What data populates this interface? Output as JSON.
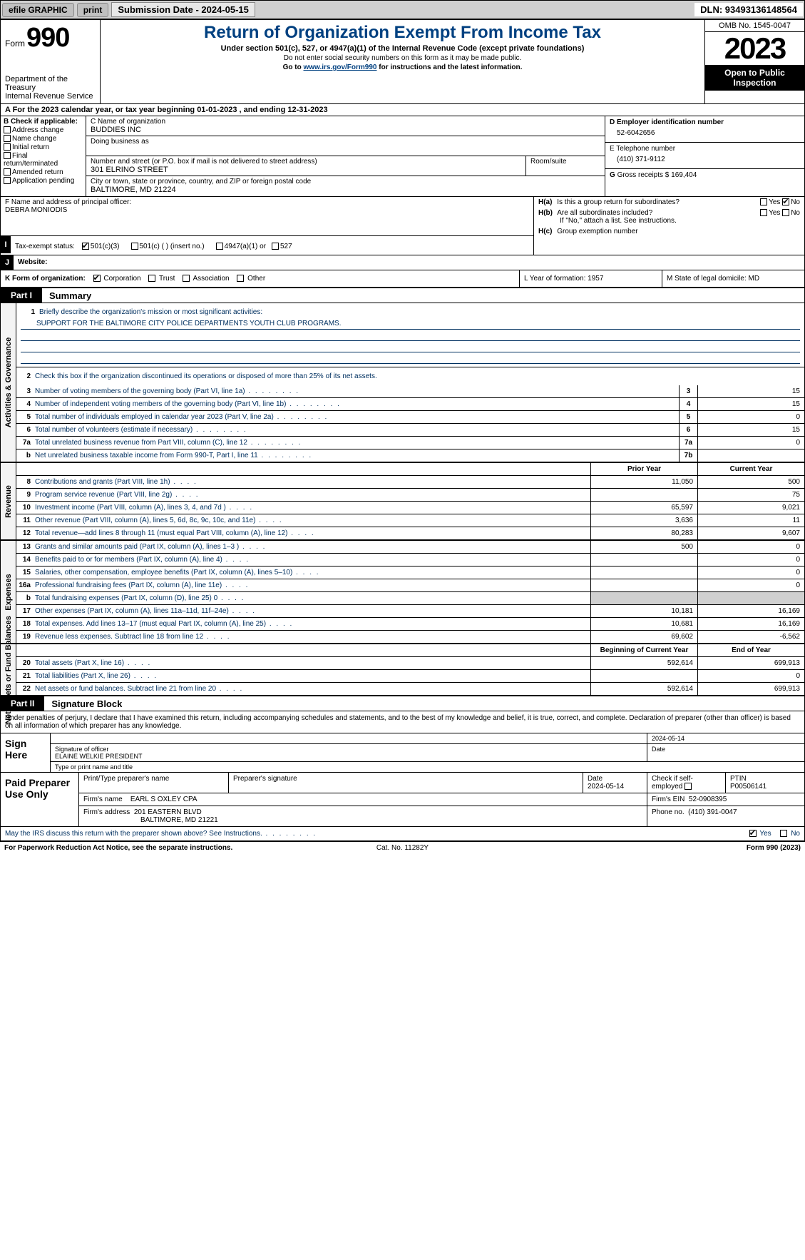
{
  "topbar": {
    "efile": "efile GRAPHIC",
    "print": "print",
    "submission": "Submission Date - 2024-05-15",
    "dln": "DLN: 93493136148564"
  },
  "header": {
    "form_word": "Form",
    "form_num": "990",
    "dept": "Department of the Treasury\nInternal Revenue Service",
    "title": "Return of Organization Exempt From Income Tax",
    "sub": "Under section 501(c), 527, or 4947(a)(1) of the Internal Revenue Code (except private foundations)",
    "note1": "Do not enter social security numbers on this form as it may be made public.",
    "note2_pre": "Go to ",
    "note2_link": "www.irs.gov/Form990",
    "note2_post": " for instructions and the latest information.",
    "omb": "OMB No. 1545-0047",
    "year": "2023",
    "open": "Open to Public Inspection"
  },
  "period": {
    "a": "A For the 2023 calendar year, or tax year beginning 01-01-2023   , and ending 12-31-2023"
  },
  "box_b": {
    "hdr": "B Check if applicable:",
    "items": [
      "Address change",
      "Name change",
      "Initial return",
      "Final return/terminated",
      "Amended return",
      "Application pending"
    ]
  },
  "box_c": {
    "label_name": "C Name of organization",
    "name": "BUDDIES INC",
    "dba_label": "Doing business as",
    "addr_label": "Number and street (or P.O. box if mail is not delivered to street address)",
    "room_label": "Room/suite",
    "addr": "301 ELRINO STREET",
    "city_label": "City or town, state or province, country, and ZIP or foreign postal code",
    "city": "BALTIMORE, MD  21224"
  },
  "box_d": {
    "label": "D Employer identification number",
    "val": "52-6042656"
  },
  "box_e": {
    "label": "E Telephone number",
    "val": "(410) 371-9112"
  },
  "box_g": {
    "label": "G",
    "text": "Gross receipts $ 169,404"
  },
  "box_f": {
    "label": "F  Name and address of principal officer:",
    "val": "DEBRA MONIODIS"
  },
  "box_h": {
    "a_label": "H(a)",
    "a_text": "Is this a group return for subordinates?",
    "a_yes": "Yes",
    "a_no": "No",
    "b_label": "H(b)",
    "b_text": "Are all subordinates included?",
    "b_note": "If \"No,\" attach a list. See instructions.",
    "c_label": "H(c)",
    "c_text": "Group exemption number"
  },
  "box_i": {
    "label": "Tax-exempt status:",
    "o1": "501(c)(3)",
    "o2": "501(c) (  ) (insert no.)",
    "o3": "4947(a)(1) or",
    "o4": "527"
  },
  "box_j": {
    "label": "Website:"
  },
  "box_k": {
    "label": "K Form of organization:",
    "opts": [
      "Corporation",
      "Trust",
      "Association",
      "Other"
    ],
    "l": "L Year of formation: 1957",
    "m": "M State of legal domicile: MD"
  },
  "part1": {
    "tab": "Part I",
    "title": "Summary",
    "vtabs": [
      "Activities & Governance",
      "Revenue",
      "Expenses",
      "Net Assets or Fund Balances"
    ],
    "mission_label": "Briefly describe the organization's mission or most significant activities:",
    "mission": "SUPPORT FOR THE BALTIMORE CITY POLICE DEPARTMENTS YOUTH CLUB PROGRAMS.",
    "line2": "Check this box      if the organization discontinued its operations or disposed of more than 25% of its net assets.",
    "gov_rows": [
      {
        "n": "3",
        "label": "Number of voting members of the governing body (Part VI, line 1a)",
        "id": "3",
        "val": "15"
      },
      {
        "n": "4",
        "label": "Number of independent voting members of the governing body (Part VI, line 1b)",
        "id": "4",
        "val": "15"
      },
      {
        "n": "5",
        "label": "Total number of individuals employed in calendar year 2023 (Part V, line 2a)",
        "id": "5",
        "val": "0"
      },
      {
        "n": "6",
        "label": "Total number of volunteers (estimate if necessary)",
        "id": "6",
        "val": "15"
      },
      {
        "n": "7a",
        "label": "Total unrelated business revenue from Part VIII, column (C), line 12",
        "id": "7a",
        "val": "0"
      },
      {
        "n": "b",
        "label": "Net unrelated business taxable income from Form 990-T, Part I, line 11",
        "id": "7b",
        "val": ""
      }
    ],
    "col_hdrs": {
      "prior": "Prior Year",
      "current": "Current Year"
    },
    "rev_rows": [
      {
        "n": "8",
        "label": "Contributions and grants (Part VIII, line 1h)",
        "p": "11,050",
        "c": "500"
      },
      {
        "n": "9",
        "label": "Program service revenue (Part VIII, line 2g)",
        "p": "",
        "c": "75"
      },
      {
        "n": "10",
        "label": "Investment income (Part VIII, column (A), lines 3, 4, and 7d )",
        "p": "65,597",
        "c": "9,021"
      },
      {
        "n": "11",
        "label": "Other revenue (Part VIII, column (A), lines 5, 6d, 8c, 9c, 10c, and 11e)",
        "p": "3,636",
        "c": "11"
      },
      {
        "n": "12",
        "label": "Total revenue—add lines 8 through 11 (must equal Part VIII, column (A), line 12)",
        "p": "80,283",
        "c": "9,607"
      }
    ],
    "exp_rows": [
      {
        "n": "13",
        "label": "Grants and similar amounts paid (Part IX, column (A), lines 1–3 )",
        "p": "500",
        "c": "0"
      },
      {
        "n": "14",
        "label": "Benefits paid to or for members (Part IX, column (A), line 4)",
        "p": "",
        "c": "0"
      },
      {
        "n": "15",
        "label": "Salaries, other compensation, employee benefits (Part IX, column (A), lines 5–10)",
        "p": "",
        "c": "0"
      },
      {
        "n": "16a",
        "label": "Professional fundraising fees (Part IX, column (A), line 11e)",
        "p": "",
        "c": "0"
      },
      {
        "n": "b",
        "label": "Total fundraising expenses (Part IX, column (D), line 25) 0",
        "p": "shade",
        "c": "shade"
      },
      {
        "n": "17",
        "label": "Other expenses (Part IX, column (A), lines 11a–11d, 11f–24e)",
        "p": "10,181",
        "c": "16,169"
      },
      {
        "n": "18",
        "label": "Total expenses. Add lines 13–17 (must equal Part IX, column (A), line 25)",
        "p": "10,681",
        "c": "16,169"
      },
      {
        "n": "19",
        "label": "Revenue less expenses. Subtract line 18 from line 12",
        "p": "69,602",
        "c": "-6,562"
      }
    ],
    "na_hdrs": {
      "beg": "Beginning of Current Year",
      "end": "End of Year"
    },
    "na_rows": [
      {
        "n": "20",
        "label": "Total assets (Part X, line 16)",
        "p": "592,614",
        "c": "699,913"
      },
      {
        "n": "21",
        "label": "Total liabilities (Part X, line 26)",
        "p": "",
        "c": "0"
      },
      {
        "n": "22",
        "label": "Net assets or fund balances. Subtract line 21 from line 20",
        "p": "592,614",
        "c": "699,913"
      }
    ]
  },
  "part2": {
    "tab": "Part II",
    "title": "Signature Block",
    "declare": "Under penalties of perjury, I declare that I have examined this return, including accompanying schedules and statements, and to the best of my knowledge and belief, it is true, correct, and complete. Declaration of preparer (other than officer) is based on all information of which preparer has any knowledge."
  },
  "sign": {
    "left": "Sign Here",
    "date": "2024-05-14",
    "sig_label": "Signature of officer",
    "officer": "ELAINE WELKIE  PRESIDENT",
    "type_label": "Type or print name and title",
    "date_label": "Date"
  },
  "prep": {
    "left": "Paid Preparer Use Only",
    "h1": "Print/Type preparer's name",
    "h2": "Preparer's signature",
    "h3": "Date",
    "h3v": "2024-05-14",
    "h4": "Check       if self-employed",
    "h5": "PTIN",
    "h5v": "P00506141",
    "firm_label": "Firm's name",
    "firm": "EARL S OXLEY CPA",
    "ein_label": "Firm's EIN",
    "ein": "52-0908395",
    "addr_label": "Firm's address",
    "addr1": "201 EASTERN BLVD",
    "addr2": "BALTIMORE, MD  21221",
    "phone_label": "Phone no.",
    "phone": "(410) 391-0047"
  },
  "discuss": {
    "text": "May the IRS discuss this return with the preparer shown above? See Instructions.",
    "yes": "Yes",
    "no": "No"
  },
  "footer": {
    "left": "For Paperwork Reduction Act Notice, see the separate instructions.",
    "center": "Cat. No. 11282Y",
    "right": "Form 990 (2023)"
  }
}
